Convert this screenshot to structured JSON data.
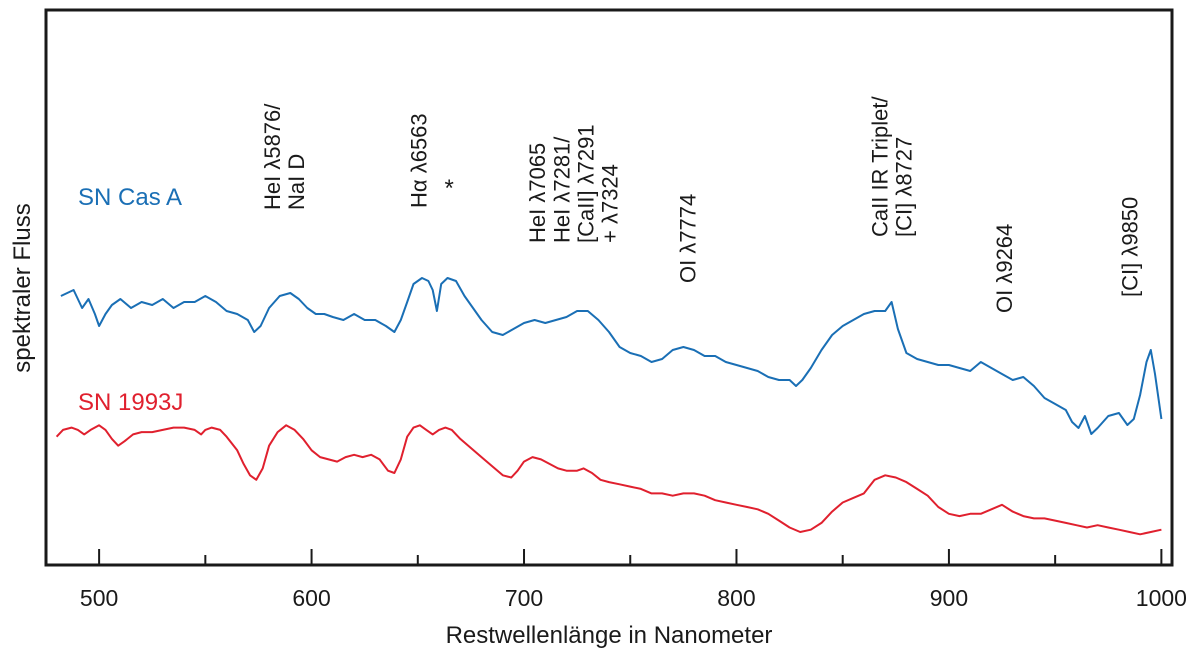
{
  "chart_data": {
    "type": "line",
    "title": "",
    "xlabel": "Restwellenlänge in Nanometer",
    "ylabel": "spektraler Fluss",
    "xlim": [
      475,
      1005
    ],
    "ylim": [
      0,
      100
    ],
    "y_axis_values_shown": false,
    "grid": false,
    "x_ticks": [
      500,
      600,
      700,
      800,
      900,
      1000
    ],
    "x_minor_ticks": [
      550,
      650,
      750,
      850,
      950
    ],
    "series": [
      {
        "name": "SN Cas A",
        "color": "#1a6fb5",
        "points": [
          [
            482,
            68
          ],
          [
            488,
            70
          ],
          [
            492,
            64
          ],
          [
            495,
            67
          ],
          [
            498,
            62
          ],
          [
            500,
            58
          ],
          [
            503,
            62
          ],
          [
            506,
            65
          ],
          [
            510,
            67
          ],
          [
            515,
            64
          ],
          [
            520,
            66
          ],
          [
            525,
            65
          ],
          [
            530,
            67
          ],
          [
            535,
            64
          ],
          [
            540,
            66
          ],
          [
            545,
            66
          ],
          [
            550,
            68
          ],
          [
            555,
            66
          ],
          [
            560,
            63
          ],
          [
            565,
            62
          ],
          [
            570,
            60
          ],
          [
            573,
            56
          ],
          [
            576,
            58
          ],
          [
            580,
            64
          ],
          [
            585,
            68
          ],
          [
            590,
            69
          ],
          [
            594,
            67
          ],
          [
            598,
            64
          ],
          [
            602,
            62
          ],
          [
            606,
            62
          ],
          [
            610,
            61
          ],
          [
            615,
            60
          ],
          [
            620,
            62
          ],
          [
            625,
            60
          ],
          [
            630,
            60
          ],
          [
            635,
            58
          ],
          [
            639,
            56
          ],
          [
            642,
            60
          ],
          [
            645,
            66
          ],
          [
            648,
            72
          ],
          [
            652,
            74
          ],
          [
            655,
            73
          ],
          [
            657,
            70
          ],
          [
            659,
            63
          ],
          [
            661,
            72
          ],
          [
            664,
            74
          ],
          [
            668,
            73
          ],
          [
            672,
            68
          ],
          [
            676,
            64
          ],
          [
            680,
            60
          ],
          [
            685,
            56
          ],
          [
            690,
            55
          ],
          [
            695,
            57
          ],
          [
            700,
            59
          ],
          [
            705,
            60
          ],
          [
            710,
            59
          ],
          [
            715,
            60
          ],
          [
            720,
            61
          ],
          [
            725,
            63
          ],
          [
            730,
            63
          ],
          [
            735,
            60
          ],
          [
            740,
            56
          ],
          [
            745,
            51
          ],
          [
            750,
            49
          ],
          [
            755,
            48
          ],
          [
            760,
            46
          ],
          [
            765,
            47
          ],
          [
            770,
            50
          ],
          [
            775,
            51
          ],
          [
            780,
            50
          ],
          [
            785,
            48
          ],
          [
            790,
            48
          ],
          [
            795,
            46
          ],
          [
            800,
            45
          ],
          [
            805,
            44
          ],
          [
            810,
            43
          ],
          [
            815,
            41
          ],
          [
            820,
            40
          ],
          [
            825,
            40
          ],
          [
            828,
            38
          ],
          [
            831,
            40
          ],
          [
            835,
            44
          ],
          [
            840,
            50
          ],
          [
            845,
            55
          ],
          [
            850,
            58
          ],
          [
            855,
            60
          ],
          [
            860,
            62
          ],
          [
            865,
            63
          ],
          [
            870,
            63
          ],
          [
            873,
            66
          ],
          [
            876,
            57
          ],
          [
            880,
            49
          ],
          [
            885,
            47
          ],
          [
            890,
            46
          ],
          [
            895,
            45
          ],
          [
            900,
            45
          ],
          [
            905,
            44
          ],
          [
            910,
            43
          ],
          [
            915,
            46
          ],
          [
            920,
            44
          ],
          [
            925,
            42
          ],
          [
            930,
            40
          ],
          [
            935,
            41
          ],
          [
            940,
            38
          ],
          [
            945,
            34
          ],
          [
            950,
            32
          ],
          [
            955,
            30
          ],
          [
            958,
            26
          ],
          [
            961,
            24
          ],
          [
            964,
            28
          ],
          [
            967,
            22
          ],
          [
            970,
            24
          ],
          [
            975,
            28
          ],
          [
            980,
            29
          ],
          [
            984,
            25
          ],
          [
            987,
            27
          ],
          [
            990,
            35
          ],
          [
            993,
            46
          ],
          [
            995,
            50
          ],
          [
            997,
            42
          ],
          [
            1000,
            27
          ]
        ]
      },
      {
        "name": "SN 1993J",
        "color": "#e0202e",
        "points": [
          [
            480,
            42
          ],
          [
            483,
            45
          ],
          [
            487,
            46
          ],
          [
            490,
            45
          ],
          [
            493,
            43
          ],
          [
            496,
            45
          ],
          [
            500,
            47
          ],
          [
            503,
            45
          ],
          [
            506,
            41
          ],
          [
            509,
            38
          ],
          [
            512,
            40
          ],
          [
            516,
            43
          ],
          [
            520,
            44
          ],
          [
            525,
            44
          ],
          [
            530,
            45
          ],
          [
            535,
            46
          ],
          [
            540,
            46
          ],
          [
            545,
            45
          ],
          [
            548,
            43
          ],
          [
            550,
            45
          ],
          [
            553,
            46
          ],
          [
            557,
            45
          ],
          [
            560,
            42
          ],
          [
            565,
            36
          ],
          [
            568,
            30
          ],
          [
            571,
            25
          ],
          [
            574,
            23
          ],
          [
            577,
            28
          ],
          [
            580,
            38
          ],
          [
            584,
            44
          ],
          [
            588,
            47
          ],
          [
            592,
            45
          ],
          [
            596,
            41
          ],
          [
            600,
            36
          ],
          [
            604,
            33
          ],
          [
            608,
            32
          ],
          [
            612,
            31
          ],
          [
            616,
            33
          ],
          [
            620,
            34
          ],
          [
            624,
            33
          ],
          [
            628,
            34
          ],
          [
            632,
            32
          ],
          [
            636,
            27
          ],
          [
            639,
            26
          ],
          [
            642,
            32
          ],
          [
            645,
            42
          ],
          [
            648,
            46
          ],
          [
            651,
            47
          ],
          [
            654,
            45
          ],
          [
            657,
            43
          ],
          [
            660,
            45
          ],
          [
            663,
            46
          ],
          [
            666,
            45
          ],
          [
            670,
            41
          ],
          [
            675,
            37
          ],
          [
            680,
            33
          ],
          [
            685,
            29
          ],
          [
            690,
            25
          ],
          [
            694,
            24
          ],
          [
            697,
            27
          ],
          [
            700,
            31
          ],
          [
            704,
            33
          ],
          [
            708,
            32
          ],
          [
            712,
            30
          ],
          [
            716,
            28
          ],
          [
            720,
            27
          ],
          [
            725,
            27
          ],
          [
            728,
            28
          ],
          [
            732,
            26
          ],
          [
            736,
            23
          ],
          [
            740,
            22
          ],
          [
            745,
            21
          ],
          [
            750,
            20
          ],
          [
            755,
            19
          ],
          [
            760,
            17
          ],
          [
            765,
            17
          ],
          [
            770,
            16
          ],
          [
            775,
            17
          ],
          [
            780,
            17
          ],
          [
            785,
            16
          ],
          [
            790,
            14
          ],
          [
            795,
            13
          ],
          [
            800,
            12
          ],
          [
            805,
            11
          ],
          [
            810,
            10
          ],
          [
            815,
            8
          ],
          [
            820,
            5
          ],
          [
            825,
            2
          ],
          [
            830,
            0
          ],
          [
            835,
            1
          ],
          [
            840,
            4
          ],
          [
            845,
            9
          ],
          [
            850,
            13
          ],
          [
            855,
            15
          ],
          [
            860,
            17
          ],
          [
            865,
            23
          ],
          [
            870,
            25
          ],
          [
            875,
            24
          ],
          [
            880,
            22
          ],
          [
            885,
            19
          ],
          [
            890,
            16
          ],
          [
            895,
            11
          ],
          [
            900,
            8
          ],
          [
            905,
            7
          ],
          [
            910,
            8
          ],
          [
            915,
            8
          ],
          [
            920,
            10
          ],
          [
            925,
            12
          ],
          [
            930,
            9
          ],
          [
            935,
            7
          ],
          [
            940,
            6
          ],
          [
            945,
            6
          ],
          [
            950,
            5
          ],
          [
            955,
            4
          ],
          [
            960,
            3
          ],
          [
            965,
            2
          ],
          [
            970,
            3
          ],
          [
            975,
            2
          ],
          [
            980,
            1
          ],
          [
            985,
            0
          ],
          [
            990,
            -1
          ],
          [
            995,
            0
          ],
          [
            1000,
            1
          ]
        ]
      }
    ],
    "series_labels": [
      "SN Cas A",
      "SN 1993J"
    ],
    "annotations": [
      {
        "lines": [
          "HeI λ5876/",
          "NaI D"
        ],
        "x": 587
      },
      {
        "lines": [
          "Hα λ6563",
          "*"
        ],
        "x": 656
      },
      {
        "lines": [
          "HeI λ7065"
        ],
        "x": 706
      },
      {
        "lines": [
          "HeI λ7281/",
          "[CaII] λ7291",
          "+ λ7324"
        ],
        "x": 729
      },
      {
        "lines": [
          "OI λ7774"
        ],
        "x": 777
      },
      {
        "lines": [
          "CaII IR Triplet/",
          "[CI] λ8727"
        ],
        "x": 873
      },
      {
        "lines": [
          "OI λ9264"
        ],
        "x": 926
      },
      {
        "lines": [
          "[CI] λ9850"
        ],
        "x": 985
      }
    ]
  }
}
